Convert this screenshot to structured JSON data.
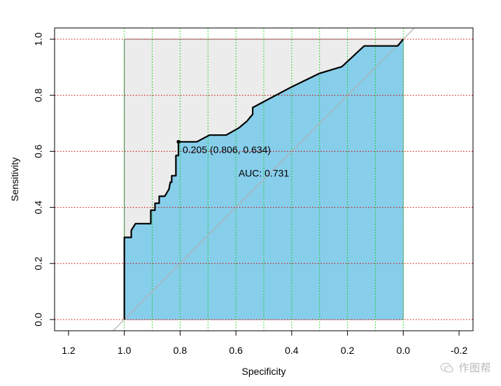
{
  "chart_data": {
    "type": "line",
    "subtype": "roc",
    "title": "",
    "xlabel": "Specificity",
    "ylabel": "Sensitivity",
    "xlim": [
      1.25,
      -0.25
    ],
    "ylim": [
      -0.04,
      1.04
    ],
    "x_reversed": true,
    "x_ticks": [
      1.2,
      1.0,
      0.8,
      0.6,
      0.4,
      0.2,
      0.0,
      -0.2
    ],
    "x_tick_labels": [
      "1.2",
      "1.0",
      "0.8",
      "0.6",
      "0.4",
      "0.2",
      "0.0",
      "-0.2"
    ],
    "y_ticks": [
      0.0,
      0.2,
      0.4,
      0.6,
      0.8,
      1.0
    ],
    "y_tick_labels": [
      "0.0",
      "0.2",
      "0.4",
      "0.6",
      "0.8",
      "1.0"
    ],
    "grid": {
      "horizontal": true,
      "horizontal_color": "#cc0000",
      "horizontal_style": "dotted",
      "vertical": true,
      "vertical_color": "#00cc00",
      "vertical_style": "dotted",
      "vertical_positions": [
        1.0,
        0.9,
        0.8,
        0.7,
        0.6,
        0.5,
        0.4,
        0.3,
        0.2,
        0.1,
        0.0
      ]
    },
    "auc": 0.731,
    "auc_label": "AUC: 0.731",
    "best_threshold": {
      "threshold": 0.205,
      "specificity": 0.806,
      "sensitivity": 0.634,
      "label": "0.205 (0.806, 0.634)"
    },
    "series": [
      {
        "specificity": [
          1.0,
          1.0,
          0.975,
          0.975,
          0.96,
          0.945,
          0.905,
          0.905,
          0.89,
          0.89,
          0.875,
          0.875,
          0.855,
          0.84,
          0.835,
          0.83,
          0.83,
          0.815,
          0.815,
          0.806,
          0.806,
          0.74,
          0.695,
          0.635,
          0.59,
          0.56,
          0.54,
          0.54,
          0.4,
          0.3,
          0.22,
          0.14,
          0.02,
          0.0
        ],
        "sensitivity": [
          0.0,
          0.293,
          0.293,
          0.318,
          0.342,
          0.342,
          0.342,
          0.39,
          0.39,
          0.415,
          0.415,
          0.44,
          0.44,
          0.465,
          0.49,
          0.49,
          0.513,
          0.513,
          0.585,
          0.585,
          0.634,
          0.634,
          0.658,
          0.658,
          0.683,
          0.708,
          0.732,
          0.756,
          0.83,
          0.878,
          0.902,
          0.976,
          0.976,
          1.0
        ]
      }
    ],
    "colors": {
      "auc_fill": "#87ceeb",
      "max_auc_fill": "#ececec",
      "roc_line": "#000000",
      "diagonal": "#b0b0b0"
    }
  },
  "watermark": {
    "text": "作图帮",
    "icon": "wechat-icon"
  }
}
